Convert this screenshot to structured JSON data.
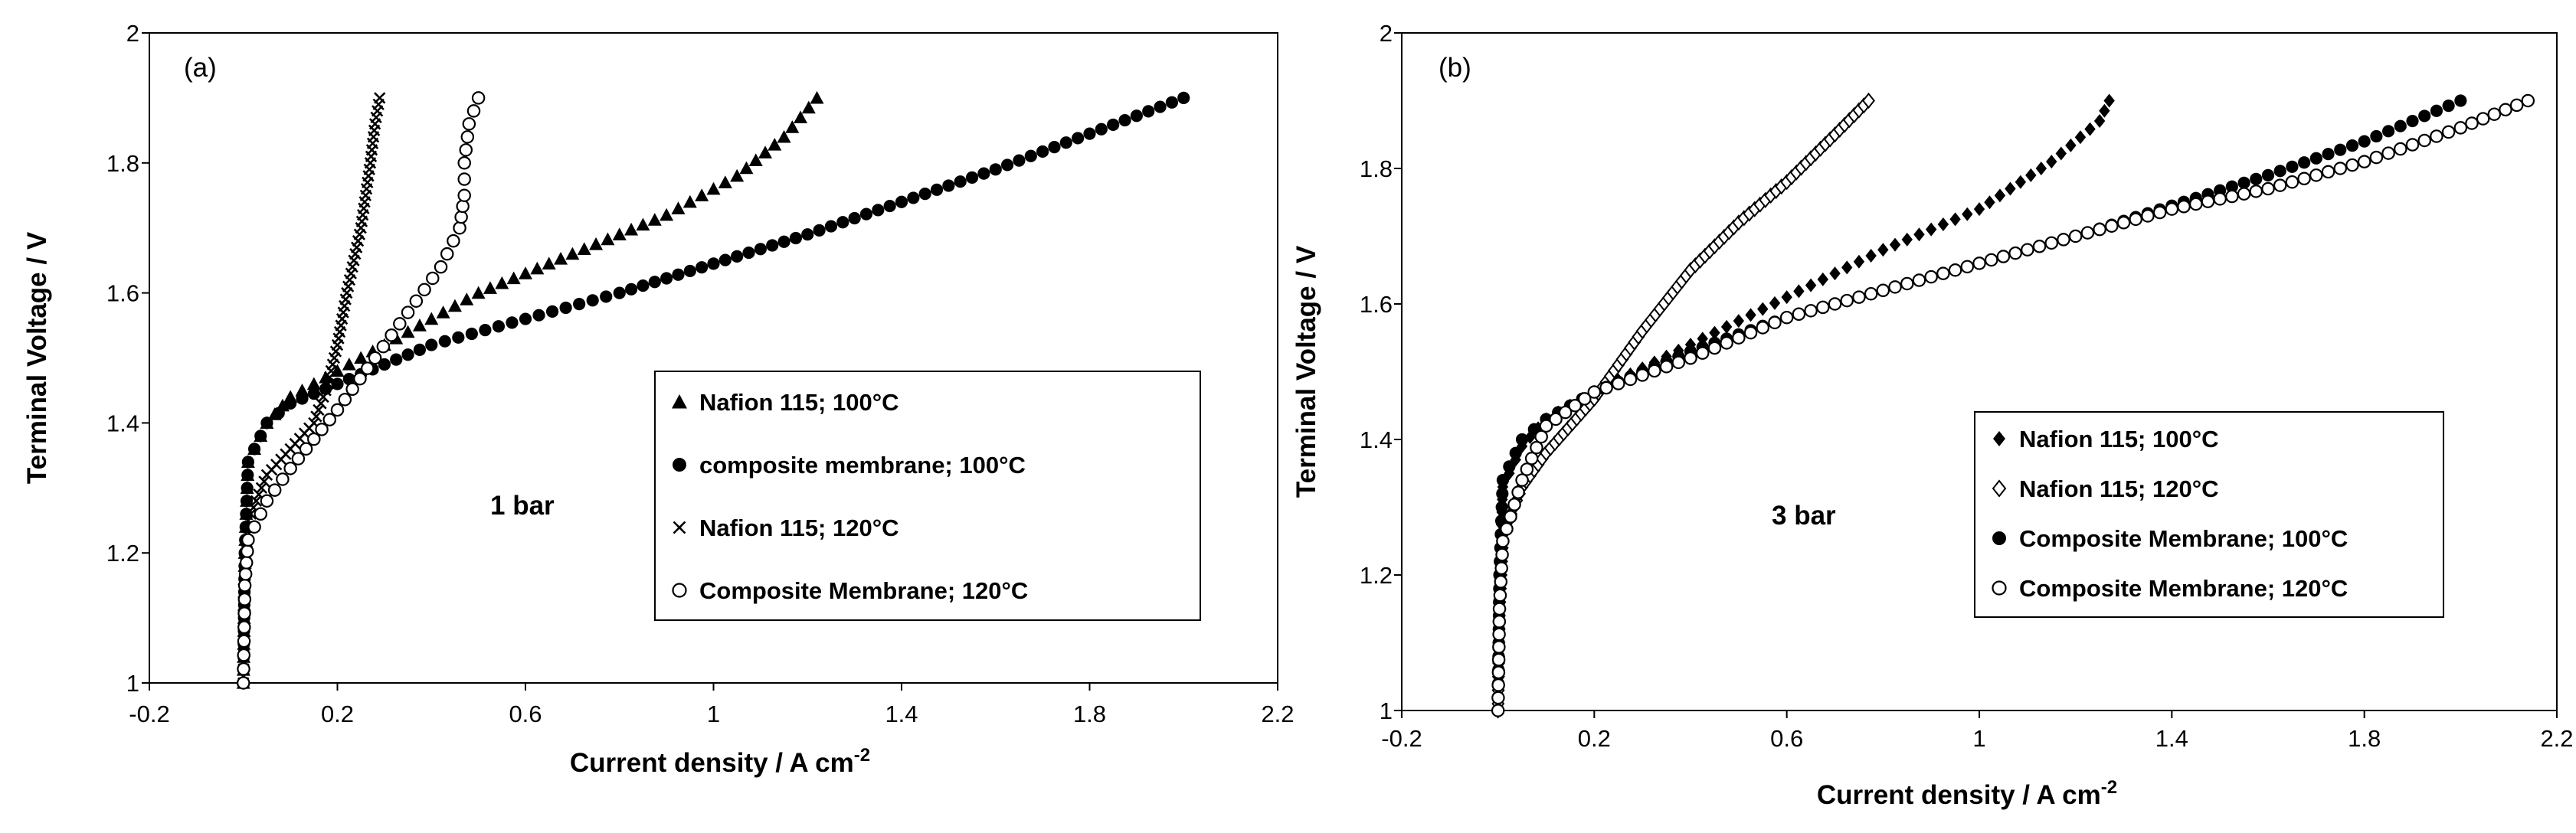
{
  "chart_data": [
    {
      "type": "scatter",
      "panel_label": "(a)",
      "annotation": "1 bar",
      "xlabel": "Current density / A cm",
      "xlabel_sup": "-2",
      "ylabel": "Terminal Voltage / V",
      "xlim": [
        -0.2,
        2.2
      ],
      "ylim": [
        1,
        2
      ],
      "xticks": [
        "-0.2",
        "0.2",
        "0.6",
        "1",
        "1.4",
        "1.8",
        "2.2"
      ],
      "yticks": [
        "1",
        "1.2",
        "1.4",
        "1.6",
        "1.8",
        "2"
      ],
      "legend_position": "center-right",
      "series": [
        {
          "name": "Nafion 115;  100°C",
          "marker": "triangle-filled",
          "points": [
            [
              0,
              1
            ],
            [
              0.003,
              1.2
            ],
            [
              0.01,
              1.34
            ],
            [
              0.05,
              1.4
            ],
            [
              0.1,
              1.44
            ],
            [
              0.2,
              1.48
            ],
            [
              0.35,
              1.54
            ],
            [
              0.5,
              1.6
            ],
            [
              0.7,
              1.66
            ],
            [
              0.9,
              1.72
            ],
            [
              1.05,
              1.78
            ],
            [
              1.15,
              1.84
            ],
            [
              1.22,
              1.9
            ]
          ]
        },
        {
          "name": "composite membrane;  100°C",
          "marker": "circle-filled",
          "points": [
            [
              0,
              1
            ],
            [
              0.003,
              1.2
            ],
            [
              0.01,
              1.34
            ],
            [
              0.05,
              1.4
            ],
            [
              0.1,
              1.43
            ],
            [
              0.2,
              1.46
            ],
            [
              0.4,
              1.52
            ],
            [
              0.6,
              1.56
            ],
            [
              0.8,
              1.6
            ],
            [
              1.0,
              1.645
            ],
            [
              1.2,
              1.69
            ],
            [
              1.4,
              1.74
            ],
            [
              1.6,
              1.79
            ],
            [
              1.8,
              1.845
            ],
            [
              2.0,
              1.9
            ]
          ]
        },
        {
          "name": "Nafion 115;  120°C",
          "marker": "cross",
          "points": [
            [
              0,
              1
            ],
            [
              0.003,
              1.15
            ],
            [
              0.01,
              1.25
            ],
            [
              0.05,
              1.32
            ],
            [
              0.1,
              1.36
            ],
            [
              0.15,
              1.4
            ],
            [
              0.18,
              1.46
            ],
            [
              0.2,
              1.52
            ],
            [
              0.22,
              1.6
            ],
            [
              0.25,
              1.7
            ],
            [
              0.27,
              1.8
            ],
            [
              0.28,
              1.86
            ],
            [
              0.29,
              1.9
            ]
          ]
        },
        {
          "name": "Composite Membrane;  120°C",
          "marker": "circle-open",
          "points": [
            [
              0,
              1
            ],
            [
              0.003,
              1.15
            ],
            [
              0.01,
              1.22
            ],
            [
              0.05,
              1.28
            ],
            [
              0.1,
              1.33
            ],
            [
              0.2,
              1.42
            ],
            [
              0.28,
              1.5
            ],
            [
              0.35,
              1.57
            ],
            [
              0.42,
              1.64
            ],
            [
              0.46,
              1.7
            ],
            [
              0.47,
              1.75
            ],
            [
              0.47,
              1.8
            ],
            [
              0.48,
              1.86
            ],
            [
              0.5,
              1.9
            ]
          ]
        }
      ]
    },
    {
      "type": "scatter",
      "panel_label": "(b)",
      "annotation": "3 bar",
      "xlabel": "Current density / A cm",
      "xlabel_sup": "-2",
      "ylabel": "Terminal Voltage / V",
      "xlim": [
        -0.2,
        2.2
      ],
      "ylim": [
        1,
        2
      ],
      "xticks": [
        "-0.2",
        "0.2",
        "0.6",
        "1",
        "1.4",
        "1.8",
        "2.2"
      ],
      "yticks": [
        "1",
        "1.2",
        "1.4",
        "1.6",
        "1.8",
        "2"
      ],
      "legend_position": "lower-right",
      "series": [
        {
          "name": "Nafion 115; 100°C",
          "marker": "diamond-filled",
          "points": [
            [
              0,
              1
            ],
            [
              0.003,
              1.2
            ],
            [
              0.01,
              1.33
            ],
            [
              0.05,
              1.39
            ],
            [
              0.1,
              1.43
            ],
            [
              0.2,
              1.47
            ],
            [
              0.4,
              1.54
            ],
            [
              0.6,
              1.61
            ],
            [
              0.8,
              1.68
            ],
            [
              1.0,
              1.74
            ],
            [
              1.15,
              1.81
            ],
            [
              1.25,
              1.87
            ],
            [
              1.27,
              1.9
            ]
          ]
        },
        {
          "name": "Nafion 115; 120°C",
          "marker": "diamond-open",
          "points": [
            [
              0,
              1
            ],
            [
              0.003,
              1.15
            ],
            [
              0.01,
              1.26
            ],
            [
              0.05,
              1.33
            ],
            [
              0.1,
              1.38
            ],
            [
              0.2,
              1.46
            ],
            [
              0.3,
              1.56
            ],
            [
              0.4,
              1.65
            ],
            [
              0.5,
              1.72
            ],
            [
              0.6,
              1.78
            ],
            [
              0.7,
              1.85
            ],
            [
              0.77,
              1.9
            ]
          ]
        },
        {
          "name": "Composite Membrane; 100°C",
          "marker": "circle-filled",
          "points": [
            [
              0,
              1
            ],
            [
              0.003,
              1.2
            ],
            [
              0.01,
              1.34
            ],
            [
              0.05,
              1.4
            ],
            [
              0.1,
              1.43
            ],
            [
              0.2,
              1.47
            ],
            [
              0.4,
              1.53
            ],
            [
              0.6,
              1.58
            ],
            [
              0.8,
              1.62
            ],
            [
              1.0,
              1.66
            ],
            [
              1.2,
              1.7
            ],
            [
              1.4,
              1.745
            ],
            [
              1.6,
              1.79
            ],
            [
              1.8,
              1.84
            ],
            [
              2.0,
              1.9
            ]
          ]
        },
        {
          "name": "Composite Membrane; 120°C",
          "marker": "circle-open",
          "points": [
            [
              0,
              1
            ],
            [
              0.003,
              1.15
            ],
            [
              0.01,
              1.25
            ],
            [
              0.05,
              1.34
            ],
            [
              0.1,
              1.42
            ],
            [
              0.2,
              1.47
            ],
            [
              0.4,
              1.52
            ],
            [
              0.6,
              1.58
            ],
            [
              0.8,
              1.62
            ],
            [
              1.0,
              1.66
            ],
            [
              1.2,
              1.7
            ],
            [
              1.4,
              1.74
            ],
            [
              1.6,
              1.77
            ],
            [
              1.8,
              1.81
            ],
            [
              2.0,
              1.86
            ],
            [
              2.14,
              1.9
            ]
          ]
        }
      ]
    }
  ]
}
